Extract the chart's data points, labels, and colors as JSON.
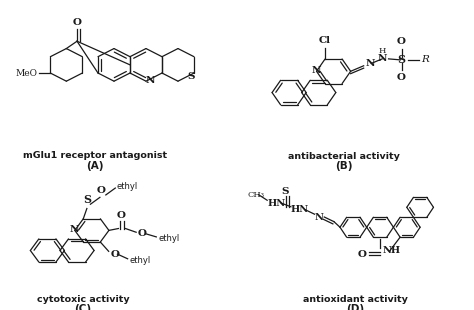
{
  "figure_width": 4.74,
  "figure_height": 3.1,
  "dpi": 100,
  "background_color": "#ffffff",
  "lc": "#1a1a1a",
  "lw": 0.9,
  "labels": {
    "A": "mGlu1 receptor antagonist",
    "B": "antibacterial activity",
    "C": "cytotoxic activity",
    "D": "antioxidant activity"
  }
}
